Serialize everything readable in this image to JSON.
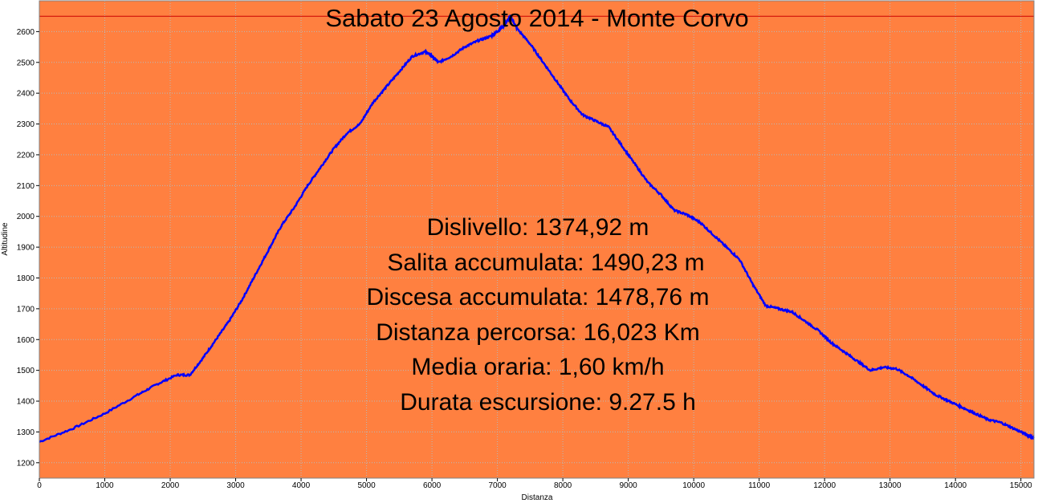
{
  "chart_data": {
    "type": "line",
    "title": "Sabato 23 Agosto 2014 - Monte Corvo",
    "xlabel": "Distanza",
    "ylabel": "Altitudine",
    "xlim": [
      0,
      15200
    ],
    "ylim": [
      1150,
      2700
    ],
    "xticks": [
      0,
      1000,
      2000,
      3000,
      4000,
      5000,
      6000,
      7000,
      8000,
      9000,
      10000,
      11000,
      12000,
      13000,
      14000,
      15000
    ],
    "yticks": [
      1200,
      1300,
      1400,
      1500,
      1600,
      1700,
      1800,
      1900,
      2000,
      2100,
      2200,
      2300,
      2400,
      2500,
      2600
    ],
    "max_line": 2650,
    "grid": true,
    "colors": {
      "background": "#ff8040",
      "line": "#0000ff",
      "max_line": "#cc0000",
      "grid": "#b8b8b8"
    },
    "series": [
      {
        "x": [
          0,
          500,
          1000,
          1500,
          1800,
          2100,
          2300,
          2500,
          2700,
          2900,
          3100,
          3300,
          3500,
          3700,
          3900,
          4100,
          4300,
          4500,
          4700,
          4900,
          5100,
          5300,
          5500,
          5700,
          5900,
          6000,
          6100,
          6300,
          6500,
          6700,
          6900,
          7000,
          7100,
          7200,
          7300,
          7500,
          7700,
          7900,
          8100,
          8300,
          8500,
          8700,
          8900,
          9100,
          9300,
          9500,
          9700,
          9900,
          10100,
          10300,
          10500,
          10700,
          10900,
          11100,
          11300,
          11500,
          11700,
          11900,
          12100,
          12300,
          12500,
          12700,
          12900,
          13100,
          13300,
          13500,
          13700,
          13900,
          14100,
          14300,
          14500,
          14700,
          14900,
          15100,
          15200
        ],
        "y": [
          1268,
          1310,
          1360,
          1420,
          1455,
          1485,
          1485,
          1540,
          1600,
          1660,
          1730,
          1810,
          1890,
          1970,
          2030,
          2100,
          2160,
          2220,
          2270,
          2300,
          2370,
          2420,
          2470,
          2520,
          2535,
          2520,
          2500,
          2520,
          2550,
          2570,
          2585,
          2600,
          2620,
          2650,
          2610,
          2560,
          2500,
          2440,
          2380,
          2330,
          2310,
          2290,
          2230,
          2170,
          2110,
          2070,
          2020,
          2005,
          1980,
          1940,
          1900,
          1860,
          1780,
          1710,
          1700,
          1690,
          1660,
          1630,
          1590,
          1560,
          1530,
          1500,
          1510,
          1505,
          1480,
          1450,
          1420,
          1400,
          1380,
          1360,
          1340,
          1330,
          1310,
          1290,
          1280
        ]
      }
    ]
  },
  "stats": [
    "Dislivello: 1374,92 m",
    "Salita accumulata: 1490,23 m",
    "Discesa accumulata: 1478,76 m",
    "Distanza percorsa: 16,023 Km",
    "Media oraria: 1,60 km/h",
    "Durata escursione: 9.27.5 h"
  ]
}
